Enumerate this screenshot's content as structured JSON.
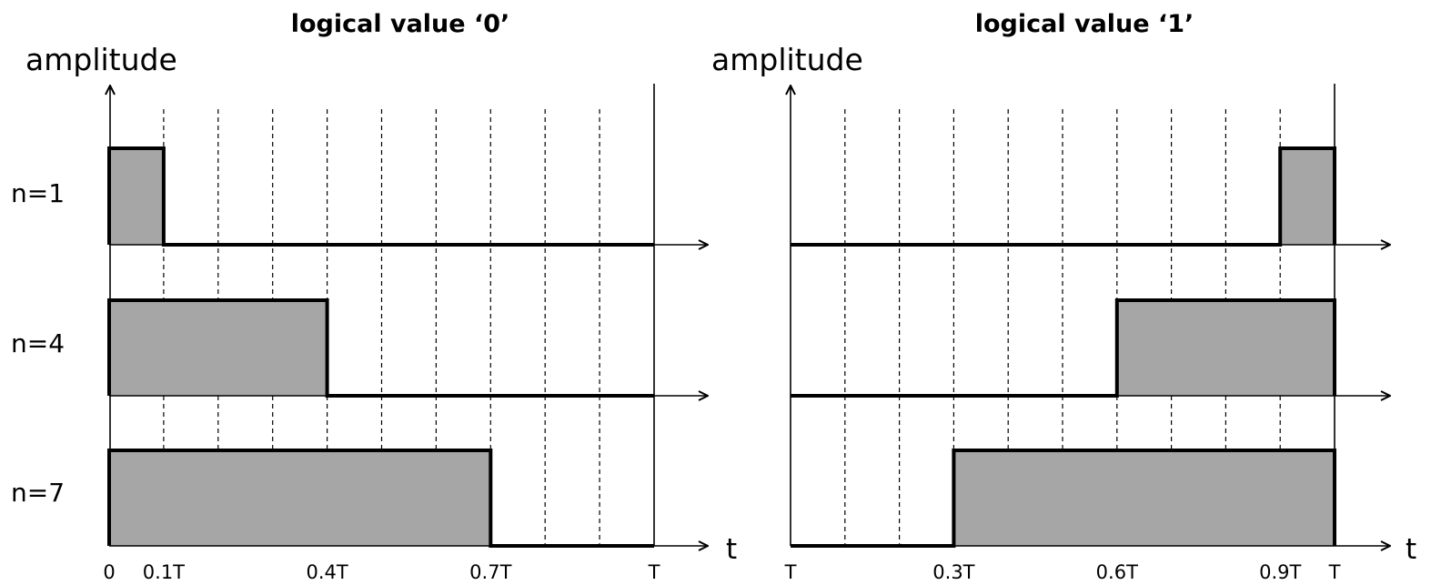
{
  "colors": {
    "fill": "#a6a6a6",
    "stroke": "#000000",
    "grid": "#000000",
    "background": "#ffffff"
  },
  "row_labels": [
    "n=1",
    "n=4",
    "n=7"
  ],
  "t_label": "t",
  "panels": [
    {
      "title": "logical value ‘0’",
      "ylabel": "amplitude",
      "tick_labels": [
        {
          "t": 0,
          "label": "0"
        },
        {
          "t": 0.1,
          "label": "0.1T"
        },
        {
          "t": 0.4,
          "label": "0.4T"
        },
        {
          "t": 0.7,
          "label": "0.7T"
        },
        {
          "t": 1,
          "label": "T"
        }
      ],
      "pulses": [
        {
          "n": 1,
          "start": 0,
          "end": 0.1
        },
        {
          "n": 4,
          "start": 0,
          "end": 0.4
        },
        {
          "n": 7,
          "start": 0,
          "end": 0.7
        }
      ]
    },
    {
      "title": "logical value ‘1’",
      "ylabel": "amplitude",
      "tick_labels": [
        {
          "t": 0,
          "label": "T"
        },
        {
          "t": 0.3,
          "label": "0.3T"
        },
        {
          "t": 0.6,
          "label": "0.6T"
        },
        {
          "t": 0.9,
          "label": "0.9T"
        },
        {
          "t": 1,
          "label": "T"
        }
      ],
      "pulses": [
        {
          "n": 1,
          "start": 0.9,
          "end": 1
        },
        {
          "n": 4,
          "start": 0.6,
          "end": 1
        },
        {
          "n": 7,
          "start": 0.3,
          "end": 1
        }
      ]
    }
  ],
  "gridlines": [
    0.1,
    0.2,
    0.3,
    0.4,
    0.5,
    0.6,
    0.7,
    0.8,
    0.9
  ]
}
